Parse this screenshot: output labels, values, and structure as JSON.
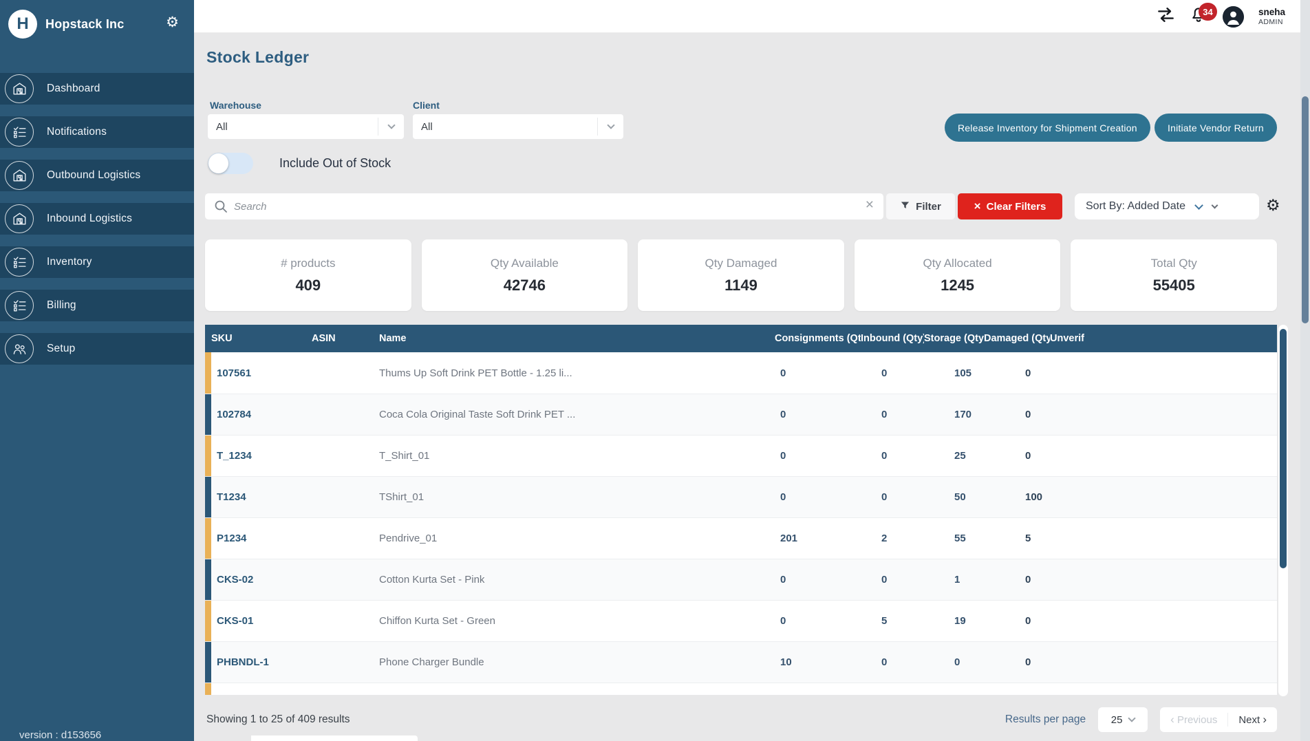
{
  "sidebar": {
    "brand": "Hopstack Inc",
    "items": [
      {
        "label": "Dashboard",
        "icon": "warehouse-icon"
      },
      {
        "label": "Notifications",
        "icon": "checklist-icon"
      },
      {
        "label": "Outbound Logistics",
        "icon": "warehouse-icon"
      },
      {
        "label": "Inbound Logistics",
        "icon": "warehouse-icon"
      },
      {
        "label": "Inventory",
        "icon": "checklist-icon"
      },
      {
        "label": "Billing",
        "icon": "checklist-icon"
      },
      {
        "label": "Setup",
        "icon": "users-icon"
      }
    ],
    "version": "version : d153656"
  },
  "header": {
    "notification_count": "34",
    "user_name": "sneha",
    "user_role": "ADMIN"
  },
  "page": {
    "title": "Stock Ledger"
  },
  "filters": {
    "warehouse_label": "Warehouse",
    "warehouse_value": "All",
    "client_label": "Client",
    "client_value": "All",
    "toggle_label": "Include Out of Stock",
    "search_placeholder": "Search",
    "filter_button": "Filter",
    "clear_filters_button": "Clear Filters",
    "sort_label": "Sort By: Added Date",
    "release_button": "Release Inventory for Shipment Creation",
    "vendor_return_button": "Initiate Vendor Return"
  },
  "stats": [
    {
      "label": "# products",
      "value": "409"
    },
    {
      "label": "Qty Available",
      "value": "42746"
    },
    {
      "label": "Qty Damaged",
      "value": "1149"
    },
    {
      "label": "Qty Allocated",
      "value": "1245"
    },
    {
      "label": "Total Qty",
      "value": "55405"
    }
  ],
  "table": {
    "columns": [
      "SKU",
      "ASIN",
      "Name",
      "Consignments (Qty)",
      "Inbound (Qty)",
      "Storage (Qty)",
      "Damaged (Qty)",
      "Unverif"
    ],
    "partial_row_stripe": "orange",
    "rows": [
      {
        "stripe": "orange",
        "sku": "107561",
        "asin": "",
        "name": "Thums Up Soft Drink PET Bottle - 1.25 li...",
        "consignments": "0",
        "inbound": "0",
        "storage": "105",
        "damaged": "0",
        "unverified": ""
      },
      {
        "stripe": "navy",
        "sku": "102784",
        "asin": "",
        "name": "Coca Cola Original Taste Soft Drink PET ...",
        "consignments": "0",
        "inbound": "0",
        "storage": "170",
        "damaged": "0",
        "unverified": ""
      },
      {
        "stripe": "orange",
        "sku": "T_1234",
        "asin": "",
        "name": "T_Shirt_01",
        "consignments": "0",
        "inbound": "0",
        "storage": "25",
        "damaged": "0",
        "unverified": ""
      },
      {
        "stripe": "navy",
        "sku": "T1234",
        "asin": "",
        "name": "TShirt_01",
        "consignments": "0",
        "inbound": "0",
        "storage": "50",
        "damaged": "100",
        "unverified": ""
      },
      {
        "stripe": "orange",
        "sku": "P1234",
        "asin": "",
        "name": "Pendrive_01",
        "consignments": "201",
        "inbound": "2",
        "storage": "55",
        "damaged": "5",
        "unverified": ""
      },
      {
        "stripe": "navy",
        "sku": "CKS-02",
        "asin": "",
        "name": "Cotton Kurta Set - Pink",
        "consignments": "0",
        "inbound": "0",
        "storage": "1",
        "damaged": "0",
        "unverified": ""
      },
      {
        "stripe": "orange",
        "sku": "CKS-01",
        "asin": "",
        "name": "Chiffon Kurta Set - Green",
        "consignments": "0",
        "inbound": "5",
        "storage": "19",
        "damaged": "0",
        "unverified": ""
      },
      {
        "stripe": "navy",
        "sku": "PHBNDL-1",
        "asin": "",
        "name": "Phone Charger Bundle",
        "consignments": "10",
        "inbound": "0",
        "storage": "0",
        "damaged": "0",
        "unverified": ""
      }
    ]
  },
  "footer": {
    "showing": "Showing 1 to 25 of 409 results",
    "results_per_page_label": "Results per page",
    "page_size": "25",
    "previous": "Previous",
    "next": "Next"
  },
  "colors": {
    "sidebar": "#2b5877",
    "sidebar_item": "#1e4560",
    "table_header_navy": "#2b5777",
    "teal_button": "#2e7391",
    "red_button": "#df231d",
    "badge_red": "#c2242b",
    "stripe_orange": "#e9b157",
    "toggle_track": "#d8e7f7",
    "content_bg": "#e8e8e9"
  }
}
